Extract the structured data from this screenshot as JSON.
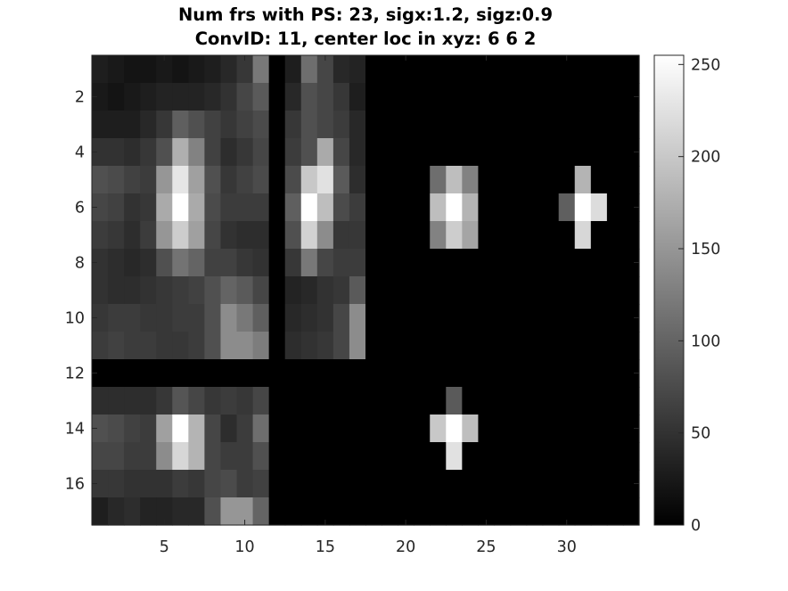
{
  "chart_data": {
    "type": "heatmap",
    "title": [
      "Num frs with PS: 23, sigx:1.2, sigz:0.9",
      "ConvID: 11, center loc in xyz: 6 6 2"
    ],
    "xlabel": "",
    "ylabel": "",
    "xlim": [
      0.5,
      34.5
    ],
    "ylim": [
      0.5,
      17.5
    ],
    "y_direction": "reverse",
    "xticks": [
      5,
      10,
      15,
      20,
      25,
      30
    ],
    "yticks": [
      2,
      4,
      6,
      8,
      10,
      12,
      14,
      16
    ],
    "colormap": "gray",
    "clim": [
      0,
      255
    ],
    "colorbar_ticks": [
      0,
      50,
      100,
      150,
      200,
      250
    ],
    "grid": false,
    "values": [
      [
        30,
        25,
        20,
        20,
        25,
        20,
        25,
        30,
        40,
        55,
        120,
        0,
        30,
        110,
        70,
        40,
        35,
        0,
        0,
        0,
        0,
        0,
        0,
        0,
        0,
        0,
        0,
        0,
        0,
        0,
        0,
        0,
        0,
        0
      ],
      [
        25,
        20,
        25,
        30,
        35,
        35,
        35,
        40,
        50,
        70,
        90,
        0,
        40,
        80,
        70,
        55,
        30,
        0,
        0,
        0,
        0,
        0,
        0,
        0,
        0,
        0,
        0,
        0,
        0,
        0,
        0,
        0,
        0,
        0
      ],
      [
        30,
        30,
        30,
        40,
        55,
        95,
        80,
        65,
        55,
        65,
        75,
        0,
        55,
        80,
        70,
        60,
        40,
        0,
        0,
        0,
        0,
        0,
        0,
        0,
        0,
        0,
        0,
        0,
        0,
        0,
        0,
        0,
        0,
        0
      ],
      [
        50,
        50,
        45,
        55,
        80,
        175,
        130,
        65,
        45,
        55,
        70,
        0,
        60,
        80,
        170,
        70,
        40,
        0,
        0,
        0,
        0,
        0,
        0,
        0,
        0,
        0,
        0,
        0,
        0,
        0,
        0,
        0,
        0,
        0
      ],
      [
        80,
        75,
        65,
        60,
        150,
        230,
        160,
        80,
        55,
        65,
        75,
        0,
        75,
        200,
        225,
        90,
        45,
        0,
        0,
        0,
        0,
        0,
        0,
        0,
        0,
        0,
        0,
        0,
        0,
        0,
        0,
        0,
        0,
        0
      ],
      [
        70,
        65,
        50,
        55,
        170,
        255,
        170,
        75,
        60,
        60,
        60,
        0,
        95,
        255,
        190,
        75,
        60,
        0,
        0,
        0,
        0,
        0,
        0,
        0,
        0,
        0,
        0,
        0,
        0,
        0,
        0,
        0,
        0,
        0
      ],
      [
        60,
        55,
        45,
        60,
        150,
        205,
        160,
        70,
        50,
        45,
        45,
        0,
        80,
        210,
        140,
        55,
        55,
        0,
        0,
        0,
        0,
        0,
        0,
        0,
        0,
        0,
        0,
        0,
        0,
        0,
        0,
        0,
        0,
        0
      ],
      [
        50,
        45,
        40,
        45,
        80,
        115,
        100,
        65,
        65,
        55,
        50,
        0,
        55,
        120,
        70,
        60,
        60,
        0,
        0,
        0,
        0,
        0,
        0,
        0,
        0,
        0,
        0,
        0,
        0,
        0,
        0,
        0,
        0,
        0
      ],
      [
        50,
        45,
        45,
        50,
        55,
        60,
        65,
        80,
        100,
        90,
        70,
        0,
        35,
        40,
        50,
        55,
        90,
        0,
        0,
        0,
        0,
        0,
        0,
        0,
        0,
        0,
        0,
        0,
        0,
        0,
        0,
        0,
        0,
        0
      ],
      [
        55,
        60,
        60,
        55,
        55,
        60,
        60,
        80,
        140,
        120,
        95,
        0,
        40,
        45,
        50,
        70,
        140,
        0,
        0,
        0,
        0,
        0,
        0,
        0,
        0,
        0,
        0,
        0,
        0,
        0,
        0,
        0,
        0,
        0
      ],
      [
        60,
        65,
        60,
        60,
        55,
        55,
        60,
        80,
        140,
        140,
        125,
        0,
        45,
        50,
        55,
        70,
        140,
        0,
        0,
        0,
        0,
        0,
        0,
        0,
        0,
        0,
        0,
        0,
        0,
        0,
        0,
        0,
        0,
        0
      ],
      [
        0,
        0,
        0,
        0,
        0,
        0,
        0,
        0,
        0,
        0,
        0,
        0,
        0,
        0,
        0,
        0,
        0,
        0,
        0,
        0,
        0,
        0,
        0,
        0,
        0,
        0,
        0,
        0,
        0,
        0,
        0,
        0,
        0,
        0
      ],
      [
        45,
        45,
        45,
        45,
        55,
        85,
        70,
        55,
        60,
        55,
        70,
        0,
        0,
        0,
        0,
        0,
        0,
        0,
        0,
        0,
        0,
        0,
        0,
        0,
        0,
        0,
        0,
        0,
        0,
        0,
        0,
        0,
        0,
        0
      ],
      [
        80,
        75,
        65,
        60,
        160,
        255,
        180,
        70,
        45,
        60,
        110,
        0,
        0,
        0,
        0,
        0,
        0,
        0,
        0,
        0,
        0,
        0,
        0,
        0,
        0,
        0,
        0,
        0,
        0,
        0,
        0,
        0,
        0,
        0
      ],
      [
        70,
        70,
        60,
        60,
        140,
        215,
        180,
        70,
        60,
        60,
        80,
        0,
        0,
        0,
        0,
        0,
        0,
        0,
        0,
        0,
        0,
        0,
        0,
        0,
        0,
        0,
        0,
        0,
        0,
        0,
        0,
        0,
        0,
        0
      ],
      [
        55,
        55,
        50,
        50,
        50,
        60,
        55,
        70,
        75,
        60,
        65,
        0,
        0,
        0,
        0,
        0,
        0,
        0,
        0,
        0,
        0,
        0,
        0,
        0,
        0,
        0,
        0,
        0,
        0,
        0,
        0,
        0,
        0,
        0
      ],
      [
        30,
        40,
        45,
        35,
        35,
        40,
        40,
        80,
        150,
        150,
        100,
        0,
        0,
        0,
        0,
        0,
        0,
        0,
        0,
        0,
        0,
        0,
        0,
        0,
        0,
        0,
        0,
        0,
        0,
        0,
        0,
        0,
        0,
        0
      ]
    ],
    "overlays": [
      {
        "x": 22,
        "y": 5,
        "value": 110
      },
      {
        "x": 23,
        "y": 5,
        "value": 190
      },
      {
        "x": 24,
        "y": 5,
        "value": 130
      },
      {
        "x": 22,
        "y": 6,
        "value": 190
      },
      {
        "x": 23,
        "y": 6,
        "value": 255
      },
      {
        "x": 24,
        "y": 6,
        "value": 180
      },
      {
        "x": 22,
        "y": 7,
        "value": 130
      },
      {
        "x": 23,
        "y": 7,
        "value": 205
      },
      {
        "x": 24,
        "y": 7,
        "value": 165
      },
      {
        "x": 31,
        "y": 5,
        "value": 180
      },
      {
        "x": 30,
        "y": 6,
        "value": 95
      },
      {
        "x": 31,
        "y": 6,
        "value": 255
      },
      {
        "x": 32,
        "y": 6,
        "value": 220
      },
      {
        "x": 31,
        "y": 7,
        "value": 215
      },
      {
        "x": 23,
        "y": 13,
        "value": 90
      },
      {
        "x": 22,
        "y": 14,
        "value": 200
      },
      {
        "x": 23,
        "y": 14,
        "value": 255
      },
      {
        "x": 24,
        "y": 14,
        "value": 190
      },
      {
        "x": 23,
        "y": 15,
        "value": 225
      }
    ]
  }
}
